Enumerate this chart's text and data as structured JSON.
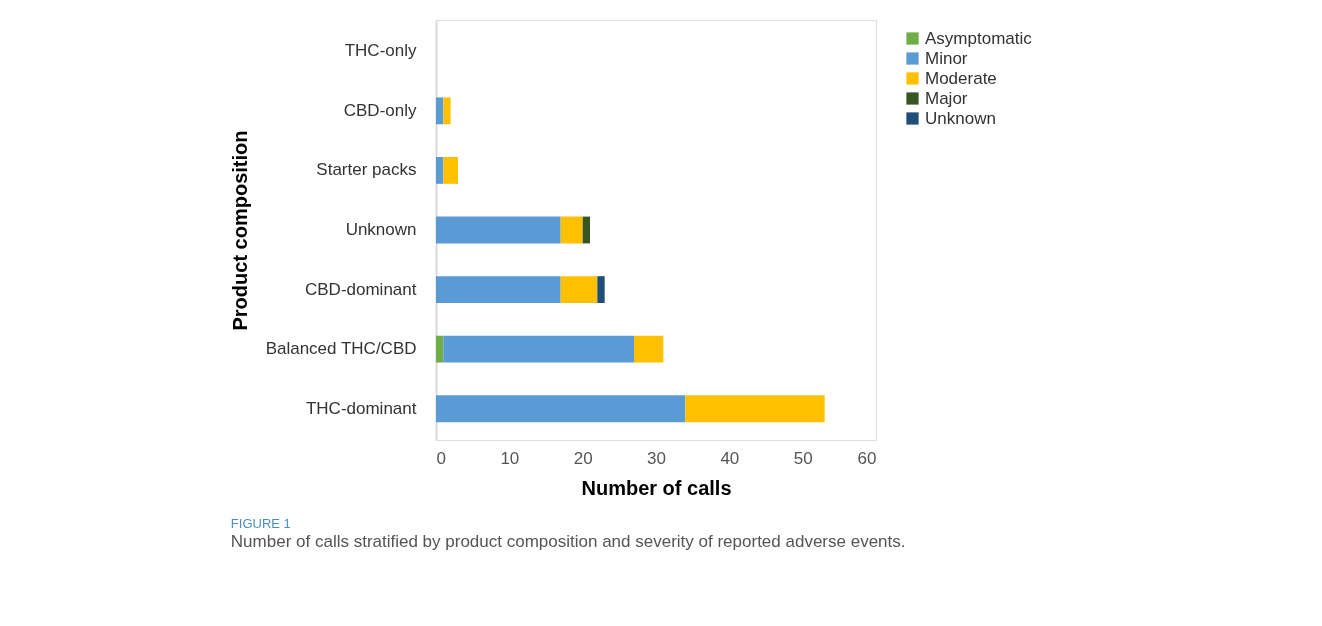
{
  "chart_data": {
    "type": "bar",
    "orientation": "horizontal",
    "stacked": true,
    "title": "FIGURE 1",
    "subtitle": "Number of calls stratified by product composition and severity of reported adverse events.",
    "xlabel": "Number of calls",
    "ylabel": "Product composition",
    "categories": [
      "THC-only",
      "CBD-only",
      "Starter packs",
      "Unknown",
      "CBD-dominant",
      "Balanced THC/CBD",
      "THC-dominant"
    ],
    "series": [
      {
        "name": "Asymptomatic",
        "color": "#70ad47",
        "values": [
          0,
          0,
          0,
          0,
          0,
          1,
          0
        ]
      },
      {
        "name": "Minor",
        "color": "#5b9bd5",
        "values": [
          0,
          1,
          1,
          17,
          17,
          26,
          34
        ]
      },
      {
        "name": "Moderate",
        "color": "#ffc000",
        "values": [
          0,
          1,
          2,
          3,
          5,
          4,
          19
        ]
      },
      {
        "name": "Major",
        "color": "#375623",
        "values": [
          0,
          0,
          0,
          1,
          0,
          0,
          0
        ]
      },
      {
        "name": "Unknown",
        "color": "#1f4e79",
        "values": [
          0,
          0,
          0,
          0,
          1,
          0,
          0
        ]
      }
    ],
    "xlim": [
      0,
      60
    ],
    "xticks": [
      0,
      10,
      20,
      30,
      40,
      50,
      60
    ],
    "grid": false,
    "legend": "right"
  }
}
